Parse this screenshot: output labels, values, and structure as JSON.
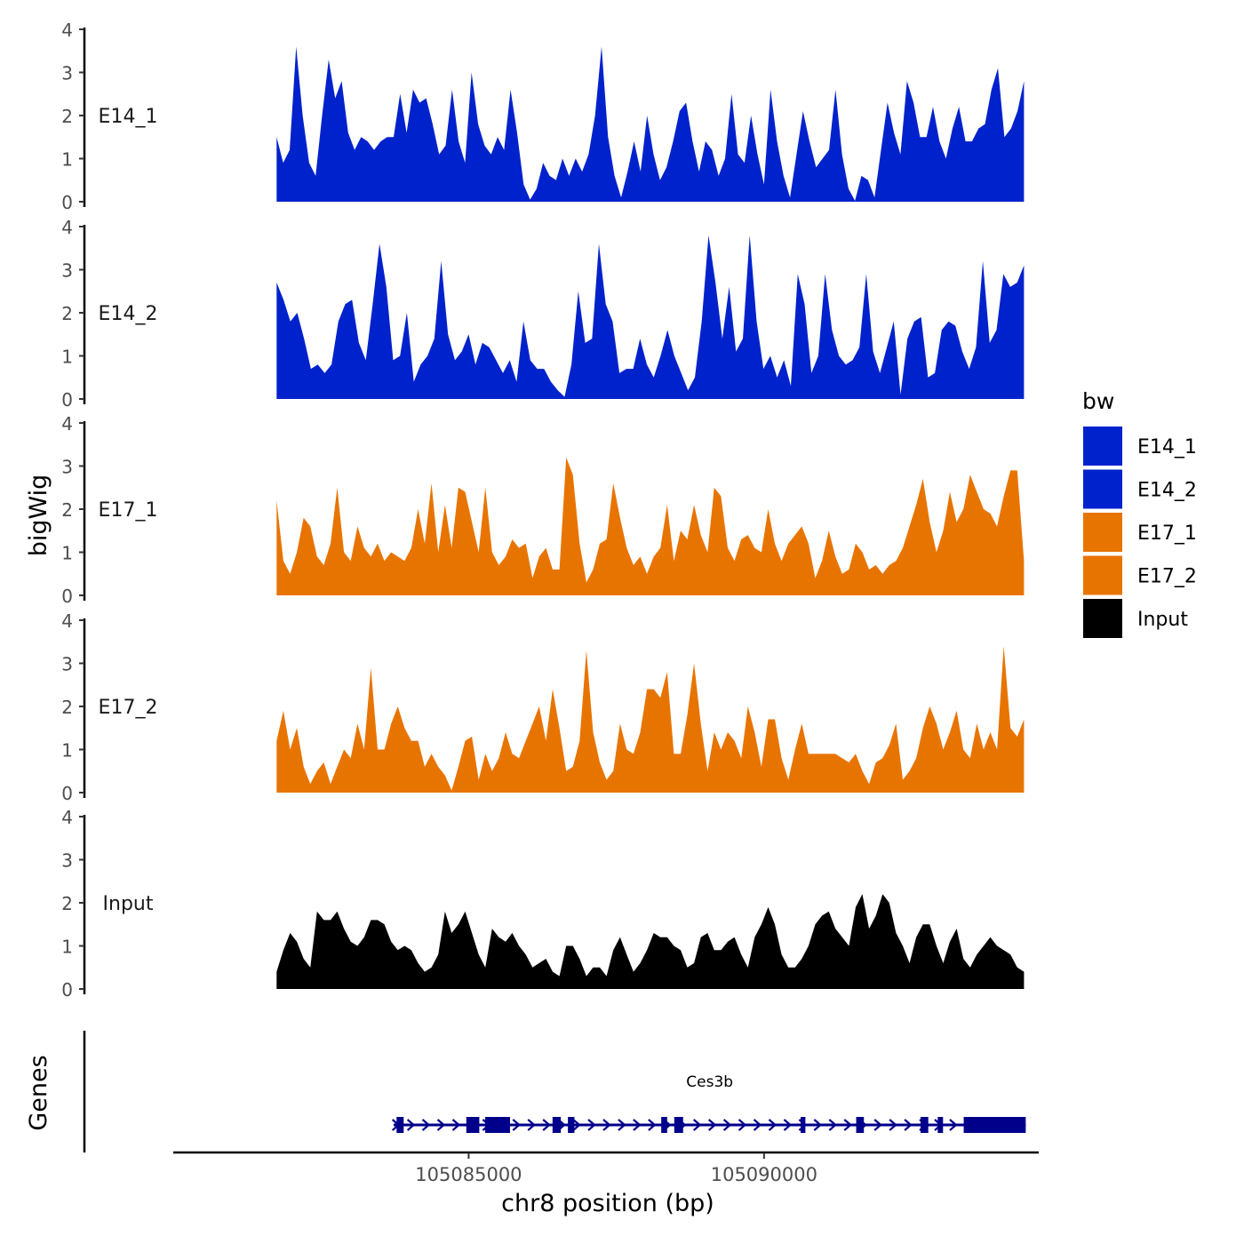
{
  "chart_data": {
    "type": "area",
    "chromosome": "chr8",
    "xlabel": "chr8 position (bp)",
    "ylabel": "bigWig",
    "genes_label": "Genes",
    "xlim": [
      105080000,
      105094650
    ],
    "x_track_range": [
      105081750,
      105094400
    ],
    "x_ticks": [
      105085000,
      105090000
    ],
    "x_tick_labels": [
      "105085000",
      "105090000"
    ],
    "ylim": [
      0,
      4
    ],
    "y_ticks": [
      0,
      1,
      2,
      3,
      4
    ],
    "y_tick_labels": [
      "0",
      "1",
      "2",
      "3",
      "4"
    ],
    "legend": {
      "title": "bw",
      "entries": [
        {
          "label": "E14_1",
          "color": "#0022cc"
        },
        {
          "label": "E14_2",
          "color": "#0022cc"
        },
        {
          "label": "E17_1",
          "color": "#e87400"
        },
        {
          "label": "E17_2",
          "color": "#e87400"
        },
        {
          "label": "Input",
          "color": "#000000"
        }
      ]
    },
    "series": [
      {
        "name": "E14_1",
        "color": "#0022cc",
        "values": [
          1.5,
          0.9,
          1.2,
          3.6,
          2.0,
          0.9,
          0.6,
          2.0,
          3.3,
          2.4,
          2.8,
          1.6,
          1.2,
          1.5,
          1.4,
          1.2,
          1.4,
          1.5,
          1.5,
          2.5,
          1.6,
          2.6,
          2.3,
          2.4,
          1.8,
          1.1,
          1.3,
          2.6,
          1.4,
          0.9,
          3.0,
          1.8,
          1.3,
          1.1,
          1.5,
          1.2,
          2.6,
          1.6,
          0.4,
          0.05,
          0.3,
          0.9,
          0.6,
          0.5,
          1.0,
          0.6,
          1.0,
          0.7,
          1.1,
          2.0,
          3.6,
          1.5,
          0.6,
          0.1,
          0.7,
          1.4,
          0.7,
          2.0,
          1.1,
          0.5,
          0.8,
          1.4,
          2.1,
          2.3,
          1.4,
          0.7,
          1.4,
          1.2,
          0.6,
          1.0,
          2.5,
          1.1,
          0.9,
          2.0,
          1.1,
          0.4,
          2.6,
          1.4,
          0.6,
          0.1,
          1.1,
          2.1,
          1.4,
          0.8,
          1.0,
          1.2,
          2.6,
          1.1,
          0.3,
          0.02,
          0.6,
          0.5,
          0.1,
          1.2,
          2.3,
          1.6,
          1.1,
          2.8,
          2.3,
          1.5,
          1.5,
          2.2,
          1.4,
          1.0,
          1.7,
          2.2,
          1.4,
          1.4,
          1.7,
          1.8,
          2.6,
          3.1,
          1.5,
          1.7,
          2.1,
          2.8
        ]
      },
      {
        "name": "E14_2",
        "color": "#0022cc",
        "values": [
          2.7,
          2.3,
          1.8,
          2.0,
          1.4,
          0.7,
          0.8,
          0.6,
          0.8,
          1.8,
          2.2,
          2.3,
          1.3,
          0.9,
          2.2,
          3.6,
          2.6,
          0.9,
          1.0,
          2.0,
          0.4,
          0.8,
          1.0,
          1.4,
          3.2,
          1.5,
          0.9,
          1.1,
          1.5,
          0.8,
          1.3,
          1.2,
          0.9,
          0.6,
          0.9,
          0.4,
          1.8,
          0.9,
          0.7,
          0.7,
          0.4,
          0.2,
          0.05,
          0.8,
          2.5,
          1.3,
          1.4,
          3.6,
          2.2,
          1.8,
          0.6,
          0.7,
          0.7,
          1.4,
          0.8,
          0.5,
          1.0,
          1.6,
          1.0,
          0.6,
          0.2,
          0.5,
          1.8,
          3.8,
          2.7,
          1.4,
          2.6,
          1.1,
          1.4,
          3.8,
          1.8,
          0.7,
          1.0,
          0.5,
          0.9,
          0.3,
          2.9,
          2.2,
          0.6,
          1.0,
          2.9,
          1.6,
          1.0,
          0.8,
          0.9,
          1.2,
          2.9,
          1.1,
          0.6,
          1.2,
          1.8,
          0.1,
          1.4,
          1.8,
          1.9,
          0.5,
          0.6,
          1.6,
          1.8,
          1.7,
          1.1,
          0.7,
          1.2,
          3.2,
          1.3,
          1.6,
          2.9,
          2.6,
          2.7,
          3.1
        ]
      },
      {
        "name": "E17_1",
        "color": "#e87400",
        "values": [
          2.2,
          0.8,
          0.5,
          1.0,
          1.8,
          1.6,
          0.9,
          0.7,
          1.2,
          2.5,
          1.0,
          0.8,
          1.6,
          1.1,
          0.9,
          1.2,
          0.8,
          1.0,
          0.9,
          0.8,
          1.1,
          2.0,
          1.2,
          2.6,
          1.0,
          2.1,
          1.1,
          2.5,
          2.4,
          1.7,
          1.0,
          2.5,
          1.0,
          0.7,
          0.9,
          1.3,
          1.1,
          1.2,
          0.4,
          0.9,
          1.1,
          0.6,
          0.6,
          3.2,
          2.8,
          1.2,
          0.3,
          0.6,
          1.2,
          1.3,
          2.6,
          1.8,
          1.1,
          0.7,
          0.9,
          0.5,
          0.9,
          1.1,
          2.1,
          0.8,
          1.5,
          1.3,
          2.1,
          1.4,
          1.0,
          2.5,
          2.3,
          1.1,
          0.8,
          1.3,
          1.4,
          1.1,
          1.0,
          2.0,
          1.2,
          0.8,
          1.2,
          1.4,
          1.6,
          1.2,
          0.4,
          0.8,
          1.5,
          0.9,
          0.5,
          0.6,
          1.2,
          1.0,
          0.6,
          0.7,
          0.5,
          0.7,
          0.8,
          1.1,
          1.6,
          2.1,
          2.7,
          1.7,
          1.0,
          1.5,
          2.4,
          1.7,
          2.0,
          2.8,
          2.4,
          2.0,
          1.9,
          1.6,
          2.3,
          2.9,
          2.9,
          0.8
        ]
      },
      {
        "name": "E17_2",
        "color": "#e87400",
        "values": [
          1.2,
          1.9,
          1.0,
          1.5,
          0.6,
          0.2,
          0.5,
          0.7,
          0.2,
          0.6,
          1.0,
          0.8,
          1.6,
          1.0,
          2.9,
          1.0,
          1.0,
          1.6,
          2.0,
          1.5,
          1.2,
          1.2,
          0.6,
          0.9,
          0.6,
          0.4,
          0.05,
          0.6,
          1.2,
          1.3,
          0.3,
          0.9,
          0.5,
          0.8,
          1.4,
          0.9,
          0.8,
          1.2,
          1.6,
          2.0,
          1.2,
          2.4,
          1.5,
          0.5,
          0.6,
          1.2,
          3.3,
          1.4,
          0.7,
          0.3,
          0.5,
          1.6,
          1.0,
          0.9,
          1.4,
          2.4,
          2.4,
          2.2,
          2.8,
          0.9,
          0.9,
          1.8,
          3.0,
          1.6,
          0.5,
          1.4,
          1.0,
          1.4,
          1.2,
          0.8,
          2.0,
          1.4,
          0.6,
          1.7,
          1.7,
          0.8,
          0.3,
          1.0,
          1.6,
          0.9,
          0.9,
          0.9,
          0.9,
          0.9,
          0.8,
          0.7,
          0.9,
          0.5,
          0.2,
          0.7,
          0.8,
          1.1,
          1.6,
          0.3,
          0.5,
          0.8,
          1.5,
          2.0,
          1.6,
          1.0,
          1.4,
          1.9,
          1.0,
          0.8,
          1.6,
          1.0,
          1.4,
          1.0,
          3.4,
          1.5,
          1.3,
          1.7
        ]
      },
      {
        "name": "Input",
        "color": "#000000",
        "values": [
          0.4,
          0.9,
          1.3,
          1.1,
          0.7,
          0.5,
          1.8,
          1.6,
          1.6,
          1.8,
          1.4,
          1.1,
          1.0,
          1.2,
          1.6,
          1.6,
          1.5,
          1.1,
          0.9,
          1.0,
          0.9,
          0.6,
          0.4,
          0.5,
          0.8,
          1.8,
          1.3,
          1.5,
          1.8,
          1.3,
          0.8,
          0.5,
          1.4,
          1.2,
          1.1,
          1.3,
          1.0,
          0.8,
          0.5,
          0.6,
          0.7,
          0.4,
          0.3,
          1.0,
          1.0,
          0.7,
          0.3,
          0.5,
          0.5,
          0.3,
          0.9,
          1.2,
          0.8,
          0.4,
          0.6,
          0.9,
          1.3,
          1.2,
          1.2,
          1.0,
          0.9,
          0.5,
          0.6,
          1.2,
          1.3,
          0.9,
          0.9,
          1.1,
          1.2,
          0.8,
          0.5,
          1.2,
          1.5,
          1.9,
          1.5,
          0.8,
          0.5,
          0.5,
          0.7,
          1.0,
          1.5,
          1.7,
          1.8,
          1.4,
          1.2,
          1.0,
          1.9,
          2.2,
          1.4,
          1.7,
          2.2,
          2.0,
          1.3,
          1.0,
          0.6,
          1.2,
          1.5,
          1.5,
          1.0,
          0.6,
          1.1,
          1.4,
          0.7,
          0.5,
          0.8,
          1.0,
          1.2,
          1.0,
          0.9,
          0.8,
          0.5,
          0.4
        ]
      }
    ],
    "gene": {
      "name": "Ces3b",
      "strand": "+",
      "color": "#00008b",
      "start": 105083730,
      "end": 105094430,
      "exons": [
        [
          105083780,
          105083900
        ],
        [
          105084960,
          105085180
        ],
        [
          105085280,
          105085700
        ],
        [
          105086420,
          105086560
        ],
        [
          105086680,
          105086790
        ],
        [
          105088260,
          105088360
        ],
        [
          105088480,
          105088630
        ],
        [
          105090620,
          105090700
        ],
        [
          105091560,
          105091690
        ],
        [
          105092650,
          105092780
        ],
        [
          105092940,
          105093030
        ],
        [
          105093380,
          105094430
        ]
      ]
    }
  }
}
